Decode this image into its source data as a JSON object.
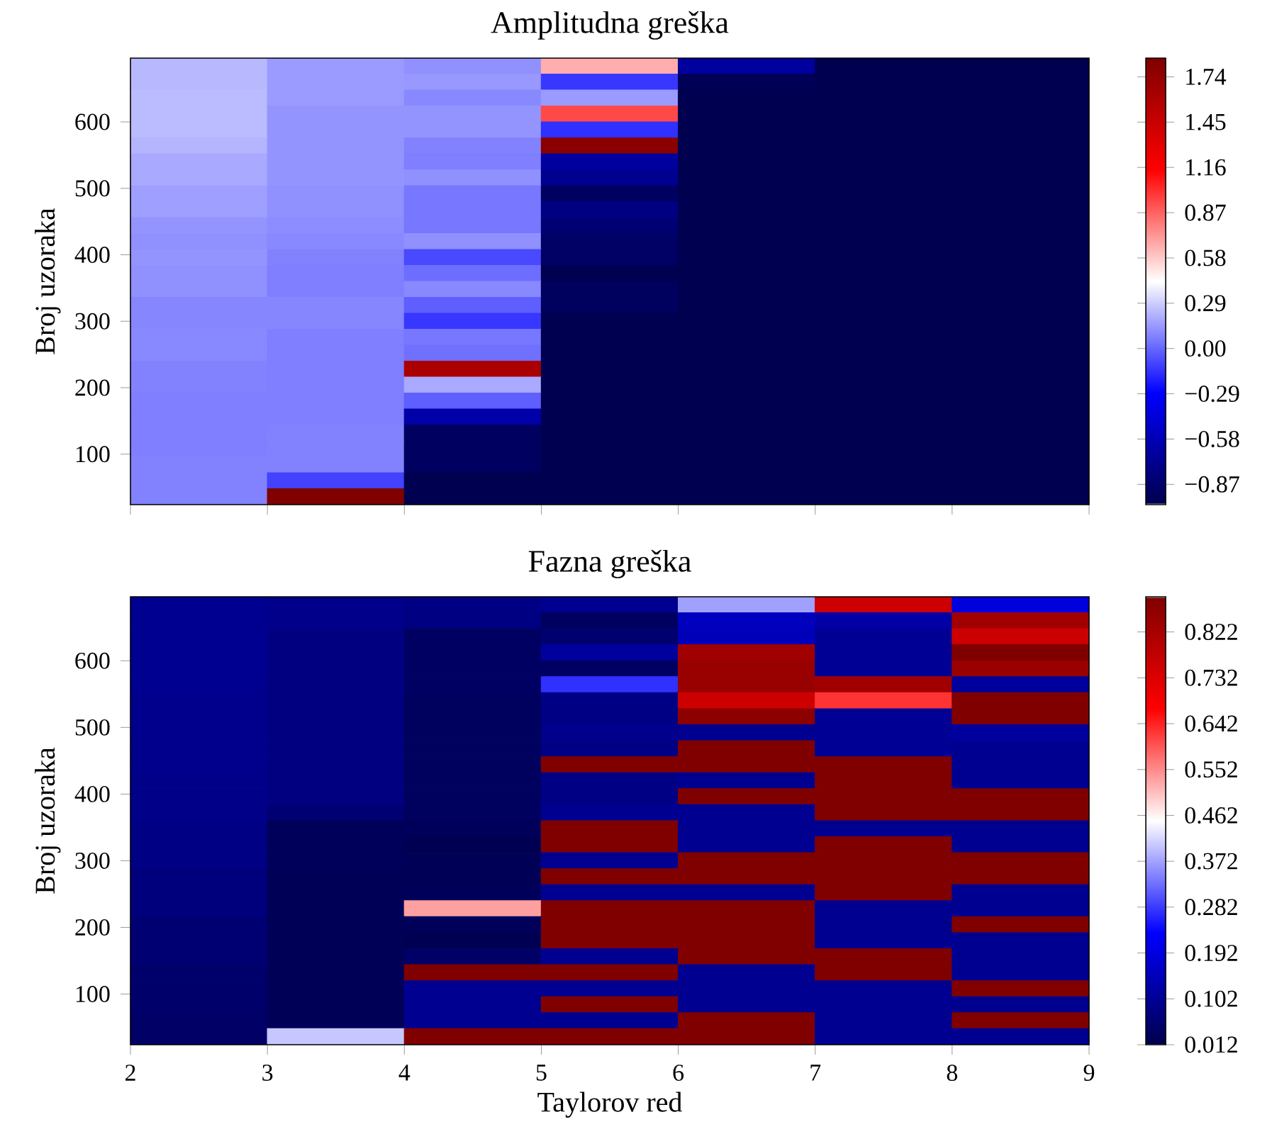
{
  "chart_data": [
    {
      "type": "heatmap",
      "title": "Amplitudna greška",
      "ylabel": "Broj uzoraka",
      "tick_labels": "y",
      "xlim": [
        2,
        9
      ],
      "xticks": [
        2,
        3,
        4,
        5,
        6,
        7,
        8,
        9
      ],
      "ylim": [
        24,
        696
      ],
      "yticks": [
        100,
        200,
        300,
        400,
        500,
        600
      ],
      "clim": [
        -1.0,
        1.86
      ],
      "cticks": [
        {
          "value": -0.87,
          "label": "−0.87"
        },
        {
          "value": -0.58,
          "label": "−0.58"
        },
        {
          "value": -0.29,
          "label": "−0.29"
        },
        {
          "value": 0,
          "label": "0.00"
        },
        0.29,
        0.58,
        0.87,
        1.16,
        1.45,
        1.74
      ],
      "cells": [
        [
          0.23,
          0.15,
          0.12,
          0.66,
          -0.67,
          -0.98,
          -0.98
        ],
        [
          0.23,
          0.15,
          0.14,
          -0.13,
          -0.96,
          -0.98,
          -0.98
        ],
        [
          0.24,
          0.15,
          0.1,
          0.15,
          -0.98,
          -0.98,
          -0.98
        ],
        [
          0.24,
          0.13,
          0.13,
          0.94,
          -0.98,
          -0.98,
          -0.98
        ],
        [
          0.24,
          0.13,
          0.13,
          -0.15,
          -0.98,
          -0.98,
          -0.98
        ],
        [
          0.22,
          0.13,
          0.08,
          1.8,
          -0.98,
          -0.98,
          -0.98
        ],
        [
          0.19,
          0.13,
          0.07,
          -0.67,
          -0.98,
          -0.98,
          -0.98
        ],
        [
          0.19,
          0.13,
          0.12,
          -0.73,
          -0.98,
          -0.98,
          -0.98
        ],
        [
          0.16,
          0.12,
          0.05,
          -0.92,
          -0.98,
          -0.98,
          -0.98
        ],
        [
          0.16,
          0.12,
          0.05,
          -0.78,
          -0.98,
          -0.98,
          -0.98
        ],
        [
          0.13,
          0.11,
          0.05,
          -0.85,
          -0.98,
          -0.98,
          -0.98
        ],
        [
          0.12,
          0.1,
          0.12,
          -0.9,
          -0.98,
          -0.98,
          -0.98
        ],
        [
          0.13,
          0.08,
          -0.08,
          -0.9,
          -0.98,
          -0.98,
          -0.98
        ],
        [
          0.12,
          0.07,
          0.02,
          -0.98,
          -0.98,
          -0.98,
          -0.98
        ],
        [
          0.12,
          0.07,
          0.1,
          -0.93,
          -0.98,
          -0.98,
          -0.98
        ],
        [
          0.09,
          0.09,
          -0.02,
          -0.93,
          -0.98,
          -0.98,
          -0.98
        ],
        [
          0.09,
          0.09,
          -0.13,
          -0.98,
          -0.98,
          -0.98,
          -0.98
        ],
        [
          0.1,
          0.07,
          0.05,
          -0.98,
          -0.98,
          -0.98,
          -0.98
        ],
        [
          0.1,
          0.07,
          0.03,
          -0.98,
          -0.98,
          -0.98,
          -0.98
        ],
        [
          0.08,
          0.07,
          1.62,
          -0.98,
          -0.98,
          -0.98,
          -0.98
        ],
        [
          0.08,
          0.07,
          0.19,
          -0.98,
          -0.98,
          -0.98,
          -0.98
        ],
        [
          0.07,
          0.07,
          -0.02,
          -0.98,
          -0.98,
          -0.98,
          -0.98
        ],
        [
          0.07,
          0.07,
          -0.63,
          -0.98,
          -0.98,
          -0.98,
          -0.98
        ],
        [
          0.07,
          0.08,
          -0.92,
          -0.98,
          -0.98,
          -0.98,
          -0.98
        ],
        [
          0.07,
          0.08,
          -0.92,
          -0.98,
          -0.98,
          -0.98,
          -0.98
        ],
        [
          0.08,
          0.08,
          -0.92,
          -0.98,
          -0.98,
          -0.98,
          -0.98
        ],
        [
          0.08,
          -0.1,
          -0.98,
          -0.98,
          -0.98,
          -0.98,
          -0.98
        ],
        [
          0.08,
          1.86,
          -0.98,
          -0.98,
          -0.98,
          -0.98,
          -0.98
        ]
      ]
    },
    {
      "type": "heatmap",
      "title": "Fazna greška",
      "xlabel": "Taylorov red",
      "ylabel": "Broj uzoraka",
      "xlim": [
        2,
        9
      ],
      "xticks": [
        2,
        3,
        4,
        5,
        6,
        7,
        8,
        9
      ],
      "ylim": [
        24,
        696
      ],
      "yticks": [
        100,
        200,
        300,
        400,
        500,
        600
      ],
      "clim": [
        0.012,
        0.891
      ],
      "cticks": [
        0.012,
        0.102,
        0.192,
        0.282,
        0.372,
        0.462,
        0.552,
        0.642,
        0.732,
        0.822
      ],
      "cells": [
        [
          0.095,
          0.088,
          0.08,
          0.095,
          0.37,
          0.759,
          0.19
        ],
        [
          0.095,
          0.088,
          0.078,
          0.035,
          0.153,
          0.12,
          0.834
        ],
        [
          0.095,
          0.075,
          0.04,
          0.055,
          0.145,
          0.1,
          0.759
        ],
        [
          0.095,
          0.075,
          0.04,
          0.11,
          0.834,
          0.1,
          0.891
        ],
        [
          0.095,
          0.075,
          0.04,
          0.04,
          0.847,
          0.1,
          0.847
        ],
        [
          0.095,
          0.075,
          0.04,
          0.273,
          0.847,
          0.834,
          0.11
        ],
        [
          0.09,
          0.075,
          0.035,
          0.08,
          0.759,
          0.627,
          0.891
        ],
        [
          0.09,
          0.075,
          0.035,
          0.08,
          0.869,
          0.1,
          0.891
        ],
        [
          0.09,
          0.075,
          0.035,
          0.09,
          0.095,
          0.1,
          0.11
        ],
        [
          0.09,
          0.075,
          0.035,
          0.08,
          0.891,
          0.1,
          0.095
        ],
        [
          0.09,
          0.075,
          0.035,
          0.891,
          0.891,
          0.891,
          0.095
        ],
        [
          0.085,
          0.075,
          0.035,
          0.08,
          0.095,
          0.891,
          0.095
        ],
        [
          0.085,
          0.075,
          0.035,
          0.08,
          0.891,
          0.891,
          0.891
        ],
        [
          0.085,
          0.06,
          0.035,
          0.095,
          0.095,
          0.891,
          0.891
        ],
        [
          0.08,
          0.03,
          0.03,
          0.891,
          0.095,
          0.095,
          0.095
        ],
        [
          0.08,
          0.03,
          0.02,
          0.891,
          0.095,
          0.891,
          0.095
        ],
        [
          0.08,
          0.03,
          0.025,
          0.095,
          0.891,
          0.891,
          0.891
        ],
        [
          0.07,
          0.025,
          0.025,
          0.891,
          0.891,
          0.891,
          0.891
        ],
        [
          0.07,
          0.025,
          0.03,
          0.095,
          0.095,
          0.891,
          0.095
        ],
        [
          0.07,
          0.025,
          0.533,
          0.891,
          0.891,
          0.095,
          0.095
        ],
        [
          0.06,
          0.025,
          0.03,
          0.891,
          0.891,
          0.095,
          0.891
        ],
        [
          0.06,
          0.025,
          0.02,
          0.891,
          0.891,
          0.095,
          0.095
        ],
        [
          0.06,
          0.025,
          0.045,
          0.095,
          0.891,
          0.891,
          0.095
        ],
        [
          0.05,
          0.025,
          0.891,
          0.891,
          0.095,
          0.891,
          0.095
        ],
        [
          0.05,
          0.025,
          0.095,
          0.095,
          0.095,
          0.095,
          0.891
        ],
        [
          0.05,
          0.025,
          0.095,
          0.891,
          0.095,
          0.095,
          0.095
        ],
        [
          0.045,
          0.025,
          0.095,
          0.095,
          0.891,
          0.095,
          0.891
        ],
        [
          0.045,
          0.403,
          0.891,
          0.891,
          0.891,
          0.095,
          0.095
        ]
      ]
    }
  ]
}
